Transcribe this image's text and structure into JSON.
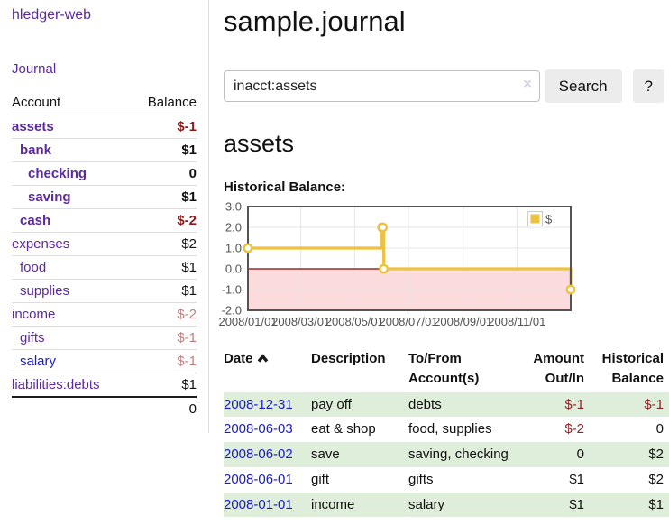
{
  "app": {
    "brand": "hledger-web",
    "nav_journal": "Journal"
  },
  "colors": {
    "link_purple": "#5b2a9e",
    "link_blue": "#1a1acc",
    "negative_strong": "#8c1a1a",
    "negative_soft": "#bf7f7f",
    "negative": "#8c2222",
    "row_green": "#deeeda"
  },
  "sidebar": {
    "header": {
      "account": "Account",
      "balance": "Balance"
    },
    "accounts": [
      {
        "name": "assets",
        "balance": "$-1",
        "depth": 1,
        "bold": true,
        "neg": "strong"
      },
      {
        "name": "bank",
        "balance": "$1",
        "depth": 2,
        "bold": true
      },
      {
        "name": "checking",
        "balance": "0",
        "depth": 3,
        "bold": true
      },
      {
        "name": "saving",
        "balance": "$1",
        "depth": 3,
        "bold": true
      },
      {
        "name": "cash",
        "balance": "$-2",
        "depth": 2,
        "bold": true,
        "neg": "strong"
      },
      {
        "name": "expenses",
        "balance": "$2",
        "depth": 1
      },
      {
        "name": "food",
        "balance": "$1",
        "depth": 2
      },
      {
        "name": "supplies",
        "balance": "$1",
        "depth": 2
      },
      {
        "name": "income",
        "balance": "$-2",
        "depth": 1,
        "neg": "soft"
      },
      {
        "name": "gifts",
        "balance": "$-1",
        "depth": 2,
        "neg": "soft"
      },
      {
        "name": "salary",
        "balance": "$-1",
        "depth": 2,
        "neg": "soft",
        "link_blue": true
      },
      {
        "name": "liabilities:debts",
        "balance": "$1",
        "depth": 1
      }
    ],
    "total": "0"
  },
  "main": {
    "title": "sample.journal",
    "search": {
      "value": "inacct:assets",
      "clear_icon": "×",
      "button": "Search",
      "help": "?"
    },
    "account_heading": "assets",
    "chart_label": "Historical Balance:"
  },
  "chart_data": {
    "type": "line",
    "title": "Historical Balance:",
    "series": [
      {
        "name": "$",
        "color": "#edc240",
        "steps": true,
        "points": [
          {
            "date": "2008-01-01",
            "x": 0.0,
            "value": 1
          },
          {
            "date": "2008-06-01",
            "x": 0.4153,
            "value": 2
          },
          {
            "date": "2008-06-02",
            "x": 0.418,
            "value": 2
          },
          {
            "date": "2008-06-03",
            "x": 0.4208,
            "value": 0
          },
          {
            "date": "2008-12-31",
            "x": 1.0,
            "value": -1
          }
        ]
      }
    ],
    "x_ticks": [
      {
        "x": 0.0,
        "label": "2008/01/01"
      },
      {
        "x": 0.1639,
        "label": "2008/03/01"
      },
      {
        "x": 0.3306,
        "label": "2008/05/01"
      },
      {
        "x": 0.4973,
        "label": "2008/07/01"
      },
      {
        "x": 0.6667,
        "label": "2008/09/01"
      },
      {
        "x": 0.8333,
        "label": "2008/11/01"
      }
    ],
    "y_ticks": [
      3.0,
      2.0,
      1.0,
      0.0,
      -1.0,
      -2.0
    ],
    "ylim": [
      -2,
      3
    ],
    "legend_position": "top-right",
    "grid": true,
    "negative_fill": "#fbdbdb",
    "zero_line_color": "#8b0000",
    "grid_color": "#e6e6e6",
    "border_color": "#545454",
    "tick_color": "#545454",
    "legend": "$"
  },
  "register": {
    "headers": {
      "date": "Date",
      "description": "Description",
      "accounts": "To/From Account(s)",
      "amount": "Amount Out/In",
      "balance": "Historical Balance"
    },
    "rows": [
      {
        "date": "2008-12-31",
        "description": "pay off",
        "accounts": "debts",
        "amount": "$-1",
        "balance": "$-1",
        "amount_neg": true,
        "balance_neg": true,
        "shade": true
      },
      {
        "date": "2008-06-03",
        "description": "eat & shop",
        "accounts": "food, supplies",
        "amount": "$-2",
        "balance": "0",
        "amount_neg": true
      },
      {
        "date": "2008-06-02",
        "description": "save",
        "accounts": "saving, checking",
        "amount": "0",
        "balance": "$2",
        "shade": true
      },
      {
        "date": "2008-06-01",
        "description": "gift",
        "accounts": "gifts",
        "amount": "$1",
        "balance": "$2"
      },
      {
        "date": "2008-01-01",
        "description": "income",
        "accounts": "salary",
        "amount": "$1",
        "balance": "$1",
        "shade": true
      }
    ]
  }
}
